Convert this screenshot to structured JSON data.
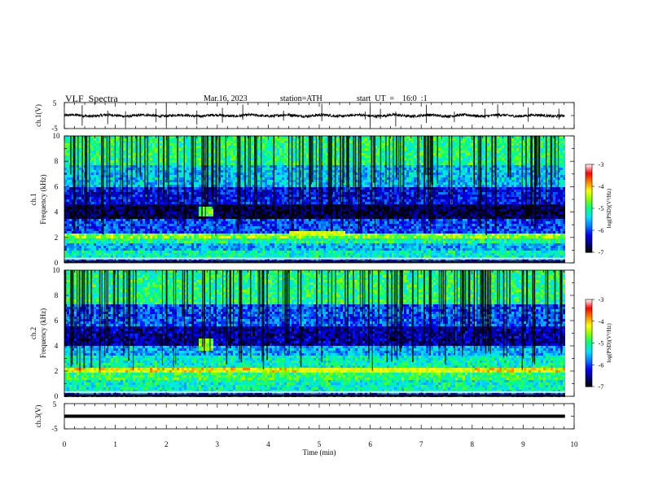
{
  "header": {
    "title": "VLF  Spectra",
    "date": "Mar.16, 2023",
    "station": "station=ATH",
    "start": "start  UT  =    16:0  :1"
  },
  "chart_data": [
    {
      "type": "line",
      "name": "ch1-waveform",
      "ylabel": "ch.1(V)",
      "ylim": [
        -5,
        5
      ],
      "yticks": [
        "5",
        "-5"
      ],
      "xlim": [
        0,
        10
      ],
      "baseline": 0,
      "spikes_x": [
        0.35,
        0.85,
        1.2,
        1.8,
        2.0,
        2.6,
        3.1,
        3.5,
        4.3,
        5.05,
        5.9,
        6.0,
        6.2,
        6.5,
        7.1,
        7.65,
        8.25,
        8.5,
        9.1,
        9.7
      ]
    },
    {
      "type": "heatmap",
      "name": "ch1-spectrogram",
      "ylabel": "ch.1\nFrequency (kHz)",
      "xlim": [
        0,
        10
      ],
      "data_end_x": 9.82,
      "ylim": [
        0,
        10
      ],
      "yticks": [
        "0",
        "2",
        "4",
        "6",
        "8",
        "10"
      ],
      "colorbar": {
        "label": "log(PSD)(V²/Hz)",
        "range": [
          -7,
          -3
        ],
        "ticks": [
          "-3",
          "-4",
          "-5",
          "-6",
          "-7"
        ]
      },
      "bands_khz_log_psd": [
        {
          "range": [
            0.0,
            0.3
          ],
          "v": -6.0
        },
        {
          "range": [
            0.3,
            0.9
          ],
          "v": -5.2
        },
        {
          "range": [
            0.9,
            1.6
          ],
          "v": -5.6
        },
        {
          "range": [
            1.6,
            2.0
          ],
          "v": -5.1
        },
        {
          "range": [
            2.0,
            2.4
          ],
          "v": -4.6
        },
        {
          "range": [
            2.4,
            3.4
          ],
          "v": -6.0
        },
        {
          "range": [
            3.4,
            4.6
          ],
          "v": -6.8
        },
        {
          "range": [
            4.6,
            6.0
          ],
          "v": -6.2
        },
        {
          "range": [
            6.0,
            7.6
          ],
          "v": -5.5
        },
        {
          "range": [
            7.6,
            10.0
          ],
          "v": -5.0
        }
      ],
      "burst": {
        "x": [
          2.6,
          2.9
        ],
        "khz": [
          3.6,
          4.4
        ],
        "v": -4.7
      },
      "hiss": {
        "x": [
          4.4,
          5.5
        ],
        "khz": [
          2.2,
          2.5
        ],
        "v": -4.3
      }
    },
    {
      "type": "heatmap",
      "name": "ch2-spectrogram",
      "ylabel": "ch.2\nFrequency (kHz)",
      "xlim": [
        0,
        10
      ],
      "data_end_x": 9.82,
      "ylim": [
        0,
        10
      ],
      "yticks": [
        "0",
        "2",
        "4",
        "6",
        "8",
        "10"
      ],
      "colorbar": {
        "label": "log(PSD)(V²/Hz)",
        "range": [
          -7,
          -3
        ],
        "ticks": [
          "-3",
          "-4",
          "-5",
          "-6",
          "-7"
        ]
      },
      "bands_khz_log_psd": [
        {
          "range": [
            0.0,
            0.3
          ],
          "v": -6.0
        },
        {
          "range": [
            0.3,
            1.2
          ],
          "v": -5.2
        },
        {
          "range": [
            1.2,
            1.8
          ],
          "v": -4.9
        },
        {
          "range": [
            1.8,
            2.3
          ],
          "v": -4.2
        },
        {
          "range": [
            2.3,
            3.2
          ],
          "v": -5.2
        },
        {
          "range": [
            3.2,
            4.0
          ],
          "v": -5.6
        },
        {
          "range": [
            4.0,
            5.6
          ],
          "v": -6.5
        },
        {
          "range": [
            5.6,
            7.2
          ],
          "v": -5.9
        },
        {
          "range": [
            7.2,
            10.0
          ],
          "v": -5.0
        }
      ],
      "burst": {
        "x": [
          2.6,
          2.9
        ],
        "khz": [
          3.6,
          4.6
        ],
        "v": -4.6
      },
      "hiss": {
        "x": [
          4.6,
          8.0
        ],
        "khz": [
          1.9,
          2.3
        ],
        "v": -4.3
      }
    },
    {
      "type": "line",
      "name": "ch3-waveform",
      "ylabel": "ch.3(V)",
      "ylim": [
        -5,
        5
      ],
      "yticks": [
        "5",
        "-5"
      ],
      "xlim": [
        0,
        10
      ],
      "baseline": 0
    }
  ],
  "xaxis": {
    "label": "Time  (min)",
    "ticks": [
      "0",
      "1",
      "2",
      "3",
      "4",
      "5",
      "6",
      "7",
      "8",
      "9",
      "10"
    ]
  },
  "colors": {
    "colormap": [
      "#000000",
      "#000080",
      "#0000ff",
      "#0080ff",
      "#00e0ff",
      "#00ff80",
      "#80ff00",
      "#ffff00",
      "#ff8000",
      "#ff0000",
      "#ffffff"
    ],
    "axis": "#000000",
    "trace": "#000000"
  }
}
